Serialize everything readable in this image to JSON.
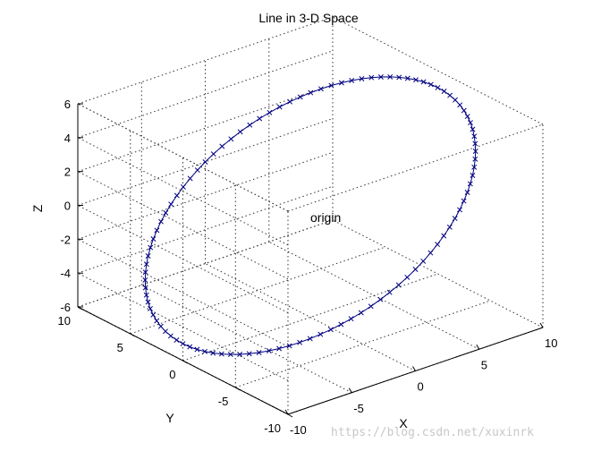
{
  "chart_data": {
    "type": "line3d",
    "title": "Line in 3-D Space",
    "xlabel": "X",
    "ylabel": "Y",
    "zlabel": "Z",
    "xlim": [
      -10,
      10
    ],
    "ylim": [
      -10,
      10
    ],
    "zlim": [
      -6,
      6
    ],
    "x_ticks": [
      -10,
      -5,
      0,
      5,
      10
    ],
    "y_ticks": [
      -10,
      -5,
      0,
      5,
      10
    ],
    "z_ticks": [
      -6,
      -4,
      -2,
      0,
      2,
      4,
      6
    ],
    "x_tick_labels": [
      "-10",
      "-5",
      "0",
      "5",
      "10"
    ],
    "y_tick_labels": [
      "-10",
      "-5",
      "0",
      "5",
      "10"
    ],
    "z_tick_labels": [
      "-6",
      "-4",
      "-2",
      "0",
      "2",
      "4",
      "6"
    ],
    "grid": true,
    "series": [
      {
        "curve": "circle",
        "center": [
          0,
          0,
          0
        ],
        "radius": 10,
        "z_slope": 0.5,
        "parameter_range_deg": [
          0,
          360
        ],
        "samples": 100,
        "marker": "x",
        "color": "#000080"
      }
    ],
    "annotations": [
      {
        "text": "origin",
        "x": 0,
        "y": 0,
        "z": 0
      }
    ]
  },
  "watermark": "https://blog.csdn.net/xuxinrk"
}
